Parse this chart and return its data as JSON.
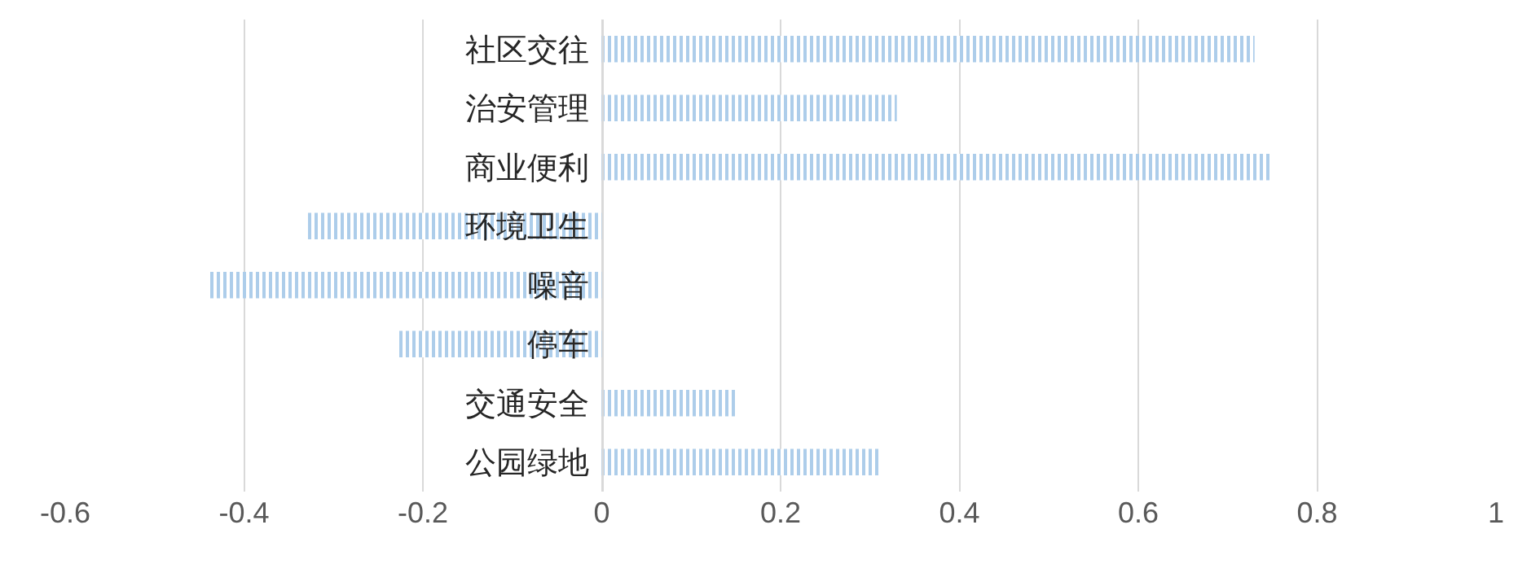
{
  "chart_data": {
    "type": "bar",
    "orientation": "horizontal",
    "categories": [
      "社区交往",
      "治安管理",
      "商业便利",
      "环境卫生",
      "噪音",
      "停车",
      "交通安全",
      "公园绿地"
    ],
    "values": [
      0.73,
      0.33,
      0.75,
      -0.33,
      -0.44,
      -0.23,
      0.15,
      0.31
    ],
    "color": "#5b9bd5",
    "xlim": [
      -0.6,
      1
    ],
    "xticks": [
      -0.6,
      -0.4,
      -0.2,
      0,
      0.2,
      0.4,
      0.6,
      0.8,
      1
    ],
    "grid": "x"
  }
}
